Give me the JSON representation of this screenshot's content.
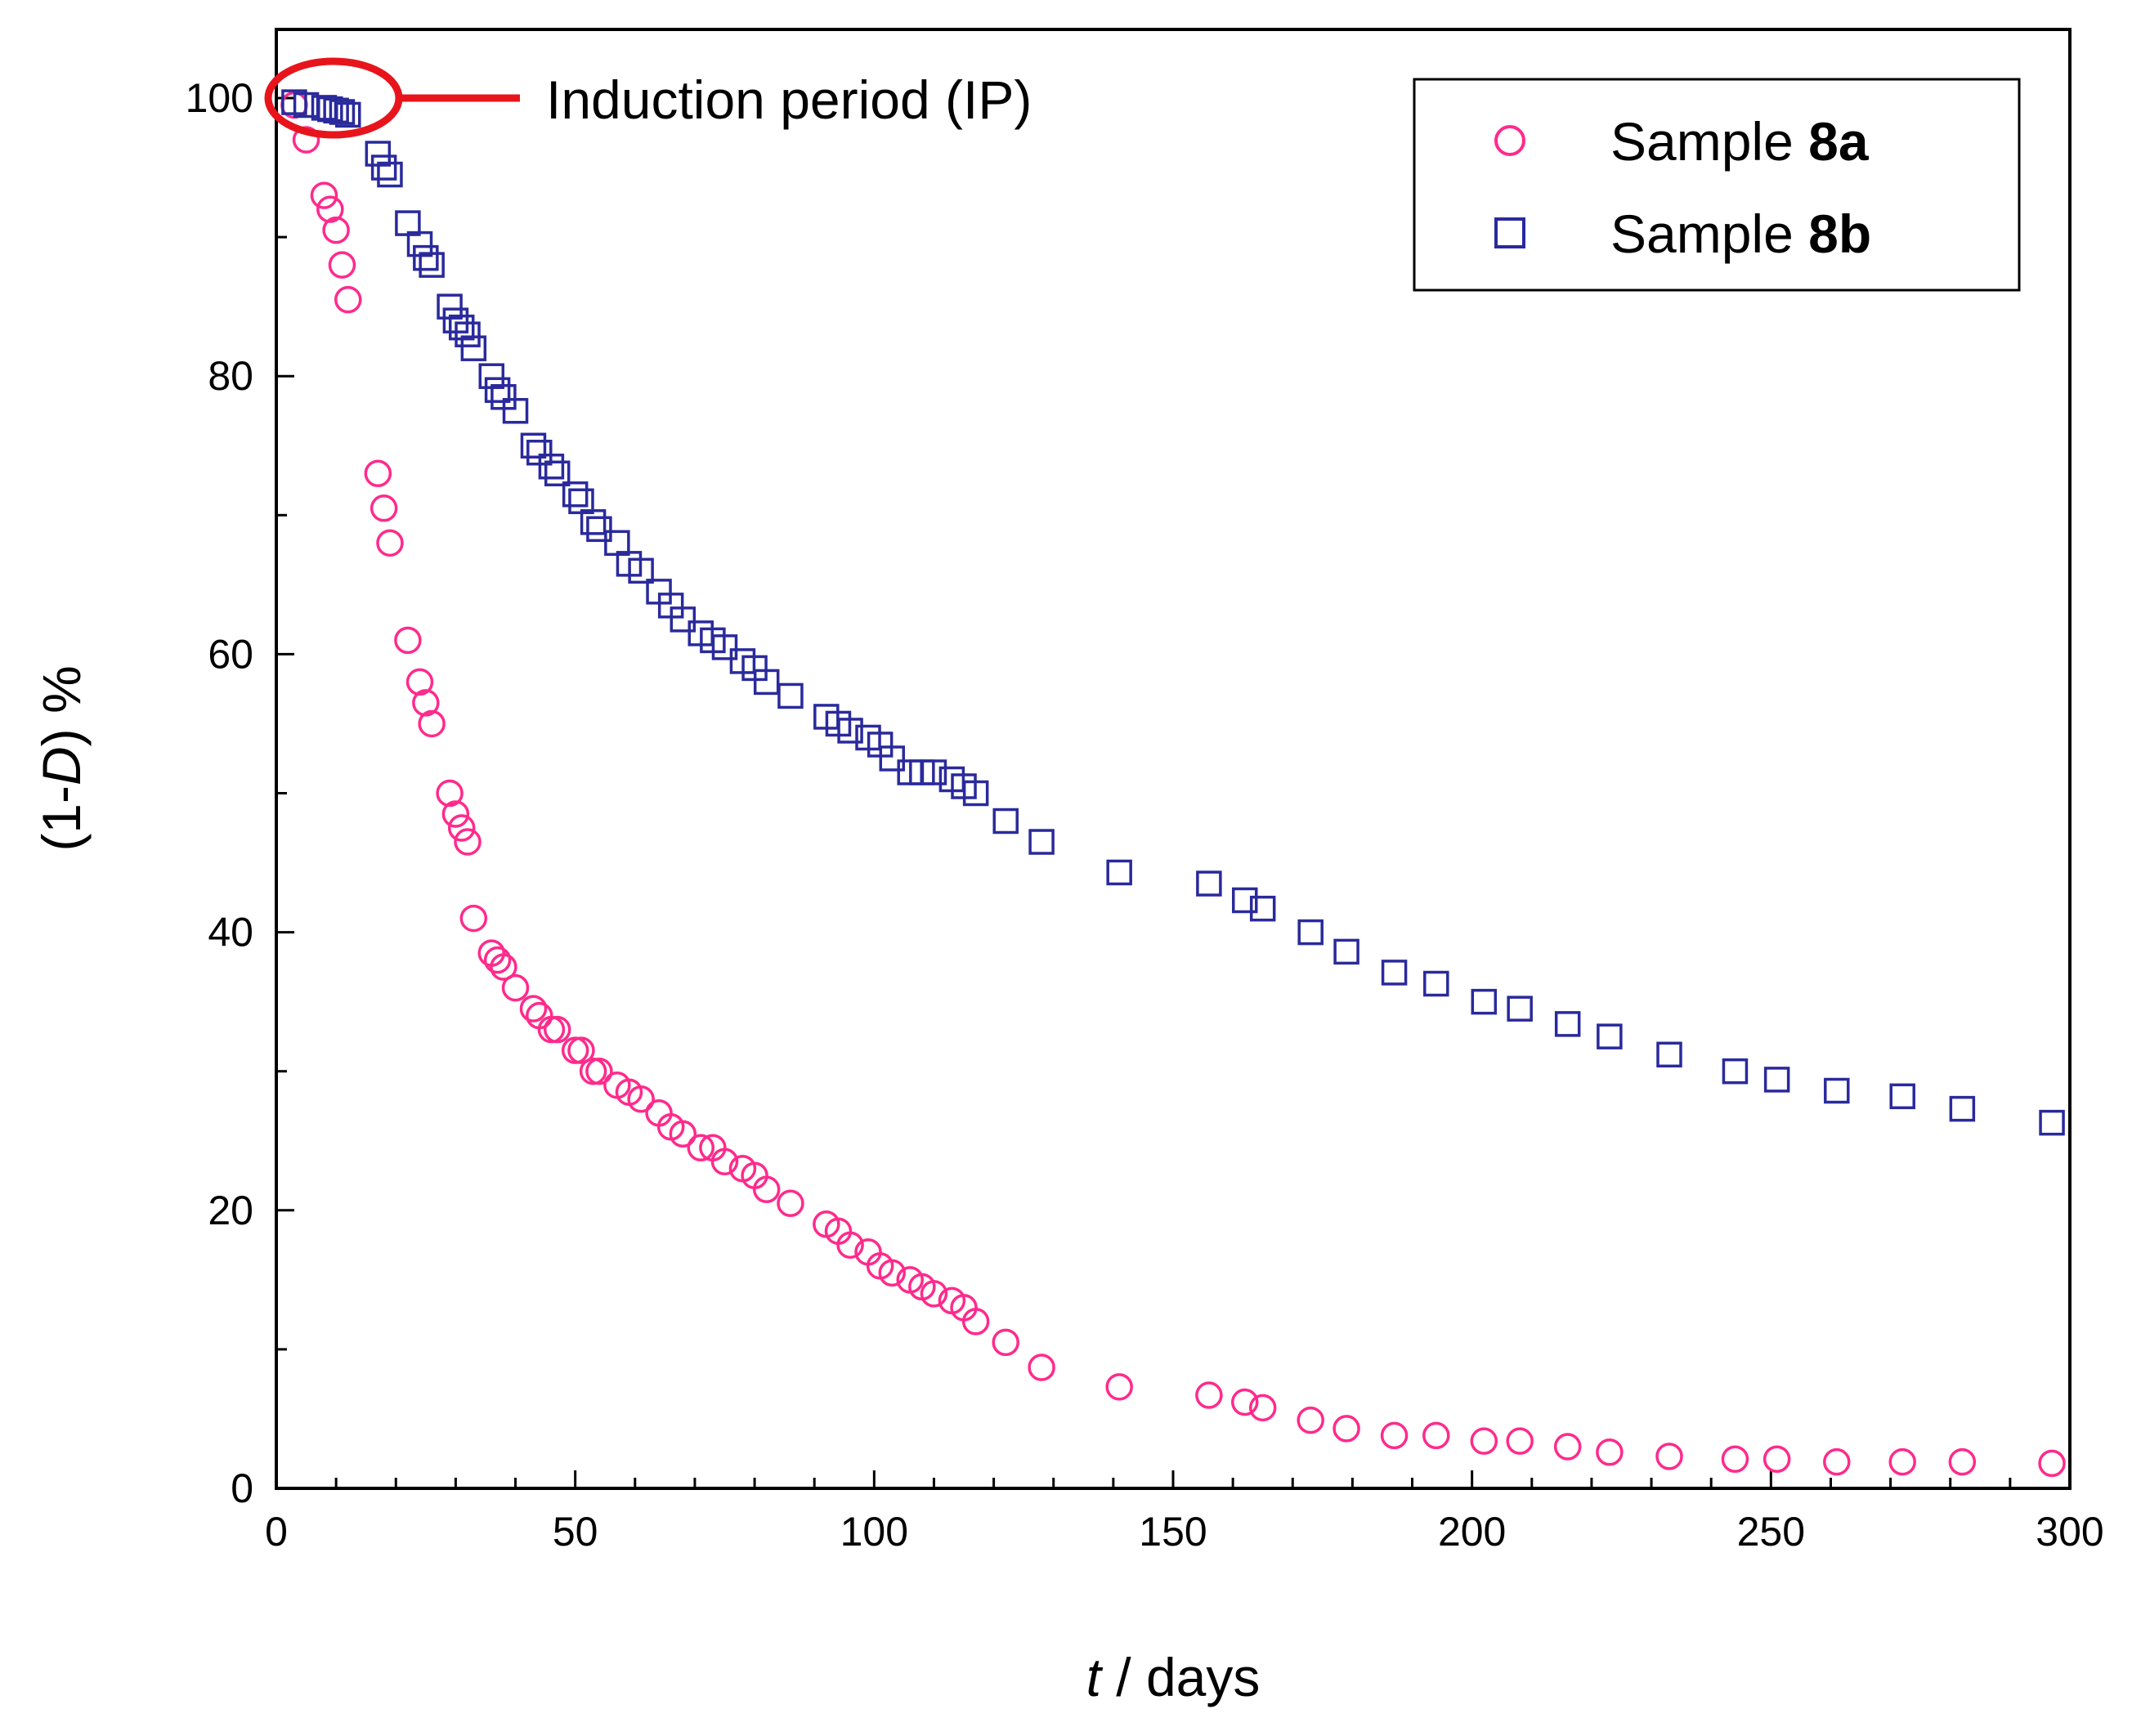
{
  "chart_data": {
    "type": "scatter",
    "xlabel_italic": "t",
    "xlabel_rest": " / days",
    "ylabel_prefix": "(1-",
    "ylabel_italic": "D",
    "ylabel_suffix": ") %",
    "xlim": [
      0,
      300
    ],
    "ylim": [
      0,
      100
    ],
    "xticks": [
      0,
      50,
      100,
      150,
      200,
      250,
      300
    ],
    "yticks": [
      0,
      20,
      40,
      60,
      80,
      100
    ],
    "xtick_labels": [
      "0",
      "50",
      "100",
      "150",
      "200",
      "250",
      "300"
    ],
    "ytick_labels": [
      "0",
      "20",
      "40",
      "60",
      "80",
      "100"
    ],
    "legend_position": "top-right",
    "annotation": "Induction period (IP)",
    "series": [
      {
        "name_prefix": "Sample ",
        "name_bold": "8a",
        "marker": "circle",
        "color": "#ff2a8c",
        "points": [
          [
            3,
            99.5
          ],
          [
            5,
            97
          ],
          [
            8,
            93
          ],
          [
            9,
            92
          ],
          [
            10,
            90.5
          ],
          [
            11,
            88
          ],
          [
            12,
            85.5
          ],
          [
            17,
            73
          ],
          [
            18,
            70.5
          ],
          [
            19,
            68
          ],
          [
            22,
            61
          ],
          [
            24,
            58
          ],
          [
            25,
            56.5
          ],
          [
            26,
            55
          ],
          [
            29,
            50
          ],
          [
            30,
            48.5
          ],
          [
            31,
            47.5
          ],
          [
            32,
            46.5
          ],
          [
            33,
            41
          ],
          [
            36,
            38.5
          ],
          [
            37,
            38
          ],
          [
            38,
            37.5
          ],
          [
            40,
            36
          ],
          [
            43,
            34.5
          ],
          [
            44,
            34
          ],
          [
            46,
            33
          ],
          [
            47,
            33
          ],
          [
            50,
            31.5
          ],
          [
            51,
            31.5
          ],
          [
            53,
            30
          ],
          [
            54,
            30
          ],
          [
            57,
            29
          ],
          [
            59,
            28.5
          ],
          [
            61,
            28
          ],
          [
            64,
            27
          ],
          [
            66,
            26
          ],
          [
            68,
            25.5
          ],
          [
            71,
            24.5
          ],
          [
            73,
            24.5
          ],
          [
            75,
            23.5
          ],
          [
            78,
            23
          ],
          [
            80,
            22.5
          ],
          [
            82,
            21.5
          ],
          [
            86,
            20.5
          ],
          [
            92,
            19
          ],
          [
            94,
            18.5
          ],
          [
            96,
            17.5
          ],
          [
            99,
            17
          ],
          [
            101,
            16
          ],
          [
            103,
            15.5
          ],
          [
            106,
            15
          ],
          [
            108,
            14.5
          ],
          [
            110,
            14
          ],
          [
            113,
            13.5
          ],
          [
            115,
            13
          ],
          [
            117,
            12
          ],
          [
            122,
            10.5
          ],
          [
            128,
            8.7
          ],
          [
            141,
            7.3
          ],
          [
            156,
            6.7
          ],
          [
            162,
            6.2
          ],
          [
            165,
            5.8
          ],
          [
            173,
            4.9
          ],
          [
            179,
            4.3
          ],
          [
            187,
            3.8
          ],
          [
            194,
            3.8
          ],
          [
            202,
            3.4
          ],
          [
            208,
            3.4
          ],
          [
            216,
            3
          ],
          [
            223,
            2.6
          ],
          [
            233,
            2.3
          ],
          [
            244,
            2.1
          ],
          [
            251,
            2.1
          ],
          [
            261,
            1.9
          ],
          [
            272,
            1.9
          ],
          [
            282,
            1.9
          ],
          [
            297,
            1.8
          ]
        ]
      },
      {
        "name_prefix": "Sample ",
        "name_bold": "8b",
        "marker": "square",
        "color": "#2a2a9c",
        "points": [
          [
            3,
            99.7
          ],
          [
            5,
            99.5
          ],
          [
            8,
            99.3
          ],
          [
            9,
            99.2
          ],
          [
            10,
            99.1
          ],
          [
            11,
            99
          ],
          [
            12,
            98.8
          ],
          [
            17,
            96
          ],
          [
            18,
            95
          ],
          [
            19,
            94.5
          ],
          [
            22,
            91
          ],
          [
            24,
            89.5
          ],
          [
            25,
            88.5
          ],
          [
            26,
            88
          ],
          [
            29,
            85
          ],
          [
            30,
            84
          ],
          [
            31,
            83.5
          ],
          [
            32,
            83
          ],
          [
            33,
            82
          ],
          [
            36,
            80
          ],
          [
            37,
            79
          ],
          [
            38,
            78.5
          ],
          [
            40,
            77.5
          ],
          [
            43,
            75
          ],
          [
            44,
            74.5
          ],
          [
            46,
            73.5
          ],
          [
            47,
            73
          ],
          [
            50,
            71.5
          ],
          [
            51,
            71
          ],
          [
            53,
            69.5
          ],
          [
            54,
            69
          ],
          [
            57,
            68
          ],
          [
            59,
            66.5
          ],
          [
            61,
            66
          ],
          [
            64,
            64.5
          ],
          [
            66,
            63.5
          ],
          [
            68,
            62.5
          ],
          [
            71,
            61.5
          ],
          [
            73,
            61
          ],
          [
            75,
            60.5
          ],
          [
            78,
            59.5
          ],
          [
            80,
            59
          ],
          [
            82,
            58
          ],
          [
            86,
            57
          ],
          [
            92,
            55.5
          ],
          [
            94,
            55
          ],
          [
            96,
            54.5
          ],
          [
            99,
            54
          ],
          [
            101,
            53.5
          ],
          [
            103,
            52.5
          ],
          [
            106,
            51.5
          ],
          [
            108,
            51.5
          ],
          [
            110,
            51.5
          ],
          [
            113,
            51
          ],
          [
            115,
            50.5
          ],
          [
            117,
            50
          ],
          [
            122,
            48
          ],
          [
            128,
            46.5
          ],
          [
            141,
            44.3
          ],
          [
            156,
            43.5
          ],
          [
            162,
            42.3
          ],
          [
            165,
            41.7
          ],
          [
            173,
            40
          ],
          [
            179,
            38.6
          ],
          [
            187,
            37.1
          ],
          [
            194,
            36.3
          ],
          [
            202,
            35
          ],
          [
            208,
            34.5
          ],
          [
            216,
            33.4
          ],
          [
            223,
            32.5
          ],
          [
            233,
            31.2
          ],
          [
            244,
            30
          ],
          [
            251,
            29.4
          ],
          [
            261,
            28.6
          ],
          [
            272,
            28.2
          ],
          [
            282,
            27.3
          ],
          [
            297,
            26.3
          ]
        ]
      }
    ]
  }
}
